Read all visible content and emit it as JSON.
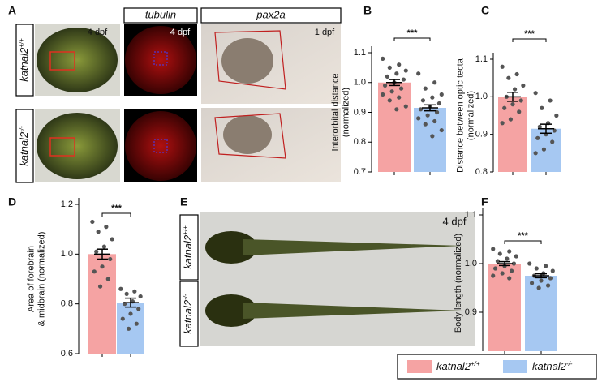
{
  "panel_labels": [
    "A",
    "B",
    "C",
    "D",
    "E",
    "F"
  ],
  "panel_a": {
    "headers": [
      "tubulin",
      "pax2a"
    ],
    "stages": [
      "4 dpf",
      "4 dpf",
      "1 dpf"
    ],
    "genotypes": [
      {
        "base": "katnal2",
        "sup": "+/+"
      },
      {
        "base": "katnal2",
        "sup": "-/-"
      }
    ]
  },
  "panel_e": {
    "stage": "4 dpf",
    "genotypes": [
      {
        "base": "katnal2",
        "sup": "+/+"
      },
      {
        "base": "katnal2",
        "sup": "-/-"
      }
    ]
  },
  "legend": [
    {
      "base": "katnal2",
      "sup": "+/+",
      "color": "#f5a3a3"
    },
    {
      "base": "katnal2",
      "sup": "-/-",
      "color": "#a6c8f2"
    }
  ],
  "chart_data": [
    {
      "type": "bar",
      "y_label": [
        "Interorbital distance",
        "(normalized)"
      ],
      "categories": [
        null,
        null
      ],
      "values": [
        1.0,
        0.915
      ],
      "errors": [
        0.01,
        0.01
      ],
      "colors": [
        "#f5a3a3",
        "#a6c8f2"
      ],
      "points": [
        [
          1.08,
          1.06,
          1.05,
          1.04,
          1.03,
          1.02,
          1.01,
          1.0,
          0.99,
          0.98,
          0.97,
          0.96,
          0.95,
          0.94,
          0.92,
          0.91
        ],
        [
          1.03,
          1.0,
          0.98,
          0.96,
          0.95,
          0.94,
          0.93,
          0.92,
          0.91,
          0.9,
          0.89,
          0.88,
          0.87,
          0.86,
          0.84,
          0.82
        ]
      ],
      "significance": "***",
      "ylim": [
        0.7,
        1.1
      ],
      "yticks": [
        0.7,
        0.8,
        0.9,
        {
          "value": 1,
          "label": "1.0"
        },
        1.1
      ]
    },
    {
      "type": "bar",
      "y_label": [
        "Distance between optic tecta",
        "(normalized)"
      ],
      "categories": [
        null,
        null
      ],
      "values": [
        1.0,
        0.915
      ],
      "errors": [
        0.012,
        0.012
      ],
      "colors": [
        "#f5a3a3",
        "#a6c8f2"
      ],
      "points": [
        [
          1.08,
          1.06,
          1.05,
          1.03,
          1.02,
          1.0,
          0.99,
          0.98,
          0.97,
          0.96,
          0.94,
          0.93
        ],
        [
          1.01,
          0.99,
          0.97,
          0.95,
          0.93,
          0.92,
          0.91,
          0.9,
          0.89,
          0.88,
          0.86,
          0.85
        ]
      ],
      "significance": "***",
      "ylim": [
        0.8,
        1.1
      ],
      "yticks": [
        0.8,
        0.9,
        {
          "value": 1,
          "label": "1.0"
        },
        1.1
      ]
    },
    {
      "type": "bar",
      "y_label": [
        "Area of forebrain",
        "& midbrain (normalized)"
      ],
      "categories": [
        null,
        null
      ],
      "values": [
        1.0,
        0.805
      ],
      "errors": [
        0.02,
        0.018
      ],
      "colors": [
        "#f5a3a3",
        "#a6c8f2"
      ],
      "points": [
        [
          1.13,
          1.11,
          1.09,
          1.06,
          1.03,
          1.01,
          0.98,
          0.95,
          0.93,
          0.9,
          0.87
        ],
        [
          0.86,
          0.85,
          0.84,
          0.83,
          0.81,
          0.8,
          0.78,
          0.76,
          0.74,
          0.72,
          0.7
        ]
      ],
      "significance": "***",
      "ylim": [
        0.6,
        1.2
      ],
      "yticks": [
        0.6,
        0.8,
        {
          "value": 1,
          "label": "1.0"
        },
        1.2
      ]
    },
    {
      "type": "bar",
      "y_label": [
        "Body length (normalized)"
      ],
      "categories": [
        null,
        null
      ],
      "values": [
        1.0,
        0.975
      ],
      "errors": [
        0.004,
        0.004
      ],
      "colors": [
        "#f5a3a3",
        "#a6c8f2"
      ],
      "points": [
        [
          1.03,
          1.025,
          1.02,
          1.015,
          1.01,
          1.005,
          1.0,
          0.995,
          0.99,
          0.985,
          0.98,
          0.975,
          0.97
        ],
        [
          1.0,
          0.995,
          0.99,
          0.985,
          0.98,
          0.975,
          0.97,
          0.965,
          0.96,
          0.955,
          0.95
        ]
      ],
      "significance": "***",
      "ylim": [
        0.82,
        1.1
      ],
      "yticks": [
        0.9,
        {
          "value": 1,
          "label": "1.0"
        },
        1.1
      ]
    }
  ]
}
